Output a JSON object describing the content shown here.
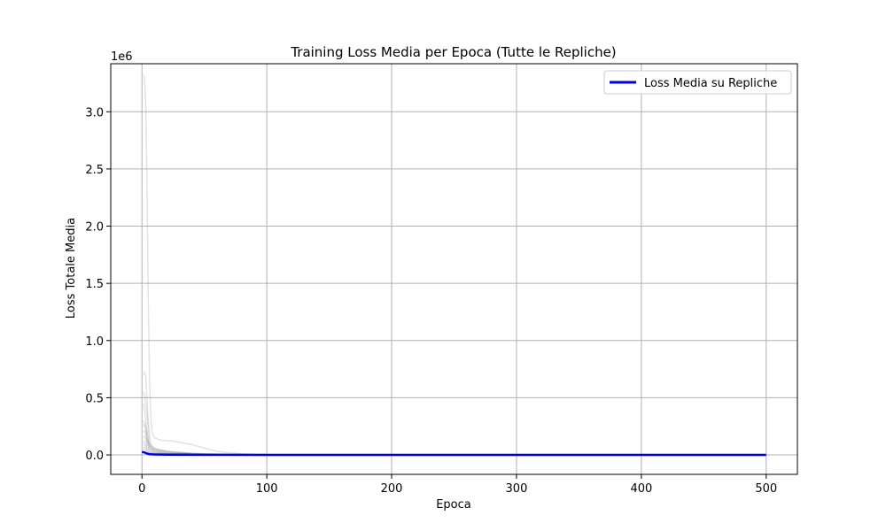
{
  "chart_data": {
    "type": "line",
    "title": "Training Loss Media per Epoca (Tutte le Repliche)",
    "xlabel": "Epoca",
    "ylabel": "Loss Totale Media",
    "y_offset_label": "1e6",
    "xlim": [
      -25,
      525
    ],
    "ylim": [
      -0.17,
      3.42
    ],
    "y_scale": 1000000,
    "xticks": [
      0,
      100,
      200,
      300,
      400,
      500
    ],
    "xtick_labels": [
      "0",
      "100",
      "200",
      "300",
      "400",
      "500"
    ],
    "yticks": [
      0.0,
      0.5,
      1.0,
      1.5,
      2.0,
      2.5,
      3.0
    ],
    "ytick_labels": [
      "0.0",
      "0.5",
      "1.0",
      "1.5",
      "2.0",
      "2.5",
      "3.0"
    ],
    "grid": true,
    "legend": {
      "placement": "top-right",
      "entries": [
        "Loss Media su Repliche"
      ]
    },
    "series": [
      {
        "name": "Loss Media su Repliche",
        "color": "#0000dd",
        "x": [
          0,
          2,
          4,
          6,
          10,
          20,
          50,
          100,
          200,
          300,
          400,
          500
        ],
        "y": [
          0.025,
          0.022,
          0.012,
          0.006,
          0.004,
          0.002,
          0.001,
          0.0005,
          0.0003,
          0.0002,
          0.0002,
          0.0002
        ]
      }
    ],
    "replicas": {
      "color": "#808080",
      "lines": [
        {
          "x": [
            1,
            2,
            3,
            4,
            5,
            6,
            7,
            8,
            10,
            15,
            25,
            40,
            60,
            80,
            100
          ],
          "y": [
            3.32,
            3.3,
            3.1,
            2.4,
            1.4,
            0.7,
            0.35,
            0.2,
            0.15,
            0.13,
            0.12,
            0.09,
            0.03,
            0.01,
            0.003
          ]
        },
        {
          "x": [
            1,
            2,
            3,
            4,
            5,
            6,
            7,
            10,
            20,
            40,
            60,
            80,
            100
          ],
          "y": [
            0.7,
            0.72,
            0.7,
            0.5,
            0.3,
            0.18,
            0.1,
            0.06,
            0.03,
            0.015,
            0.005,
            0.002,
            0.001
          ]
        },
        {
          "x": [
            1,
            2,
            3,
            4,
            5,
            6,
            8,
            15,
            30,
            50,
            70,
            100
          ],
          "y": [
            0.55,
            0.52,
            0.45,
            0.35,
            0.2,
            0.1,
            0.06,
            0.04,
            0.02,
            0.008,
            0.003,
            0.001
          ]
        },
        {
          "x": [
            1,
            2,
            3,
            4,
            5,
            7,
            10,
            20,
            40,
            70,
            100
          ],
          "y": [
            0.45,
            0.4,
            0.3,
            0.2,
            0.12,
            0.08,
            0.05,
            0.03,
            0.012,
            0.004,
            0.001
          ]
        },
        {
          "x": [
            1,
            2,
            3,
            4,
            5,
            7,
            10,
            20,
            40,
            70,
            100
          ],
          "y": [
            0.3,
            0.28,
            0.25,
            0.18,
            0.1,
            0.06,
            0.04,
            0.02,
            0.008,
            0.003,
            0.001
          ]
        },
        {
          "x": [
            1,
            2,
            3,
            4,
            6,
            10,
            20,
            40,
            70,
            100
          ],
          "y": [
            0.25,
            0.26,
            0.22,
            0.15,
            0.08,
            0.04,
            0.02,
            0.008,
            0.002,
            0.001
          ]
        },
        {
          "x": [
            1,
            2,
            3,
            4,
            6,
            10,
            20,
            40,
            70,
            100
          ],
          "y": [
            0.2,
            0.21,
            0.18,
            0.12,
            0.06,
            0.03,
            0.015,
            0.006,
            0.002,
            0.001
          ]
        },
        {
          "x": [
            1,
            2,
            3,
            4,
            6,
            10,
            20,
            40,
            70,
            100
          ],
          "y": [
            0.15,
            0.16,
            0.14,
            0.1,
            0.05,
            0.025,
            0.012,
            0.005,
            0.002,
            0.001
          ]
        },
        {
          "x": [
            1,
            2,
            3,
            4,
            6,
            10,
            20,
            40,
            70,
            100
          ],
          "y": [
            0.1,
            0.12,
            0.1,
            0.07,
            0.04,
            0.02,
            0.01,
            0.004,
            0.001,
            0.0005
          ]
        },
        {
          "x": [
            1,
            2,
            3,
            4,
            6,
            10,
            20,
            40,
            70,
            100
          ],
          "y": [
            0.08,
            0.09,
            0.08,
            0.05,
            0.03,
            0.015,
            0.008,
            0.003,
            0.001,
            0.0005
          ]
        },
        {
          "x": [
            1,
            2,
            3,
            4,
            6,
            10,
            20,
            40,
            70,
            100
          ],
          "y": [
            0.06,
            0.07,
            0.06,
            0.04,
            0.02,
            0.01,
            0.005,
            0.002,
            0.001,
            0.0005
          ]
        },
        {
          "x": [
            1,
            2,
            3,
            5,
            10,
            20,
            40,
            70,
            100
          ],
          "y": [
            0.04,
            0.05,
            0.04,
            0.02,
            0.01,
            0.005,
            0.002,
            0.001,
            0.0005
          ]
        }
      ]
    }
  }
}
